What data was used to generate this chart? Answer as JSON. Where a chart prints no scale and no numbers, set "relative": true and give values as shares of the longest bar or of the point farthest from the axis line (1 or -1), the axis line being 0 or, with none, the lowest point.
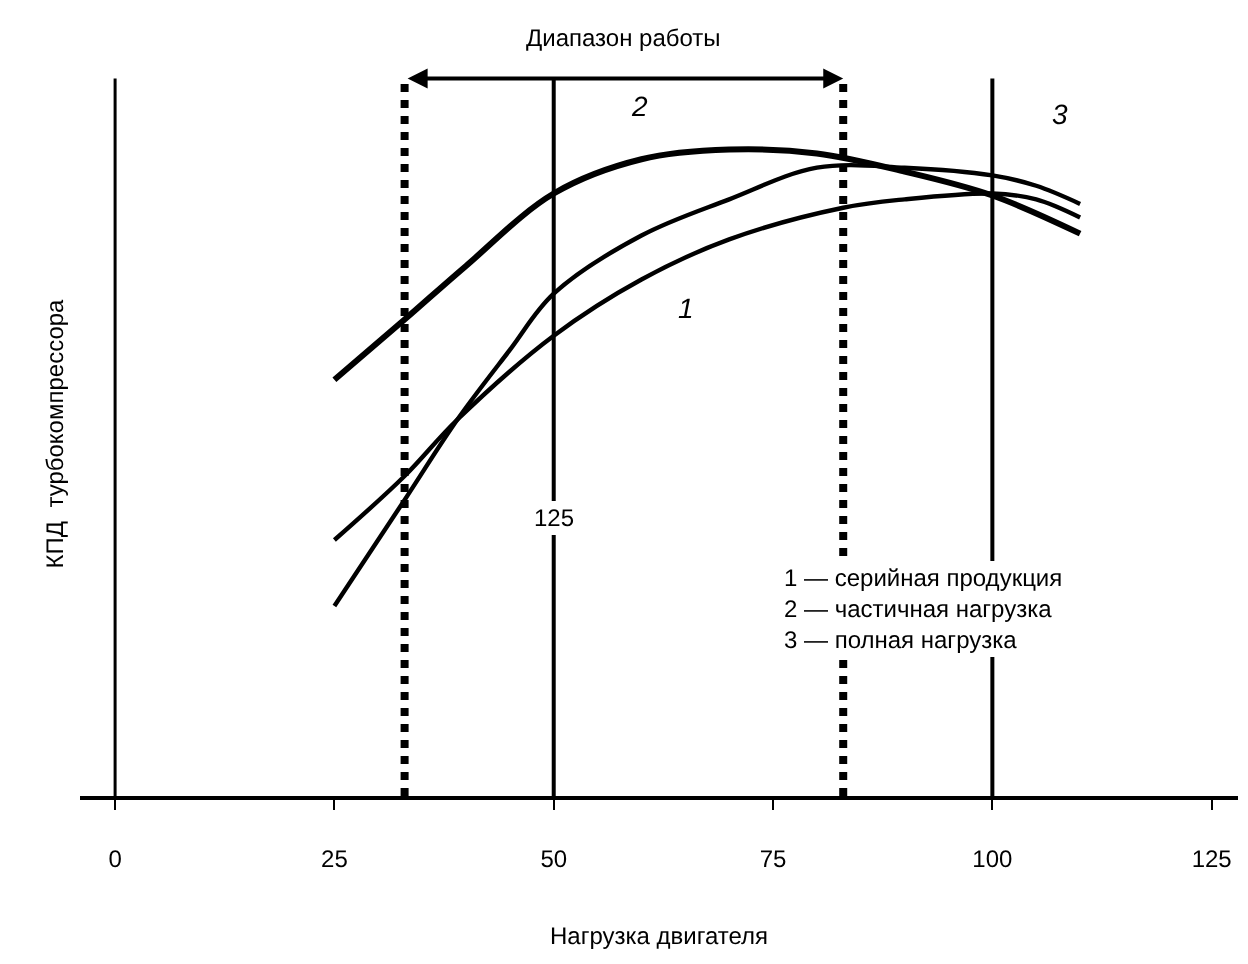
{
  "chart_data": {
    "type": "line",
    "relative": true,
    "xlabel": "Нагрузка двигателя",
    "ylabel": "КПД  турбокомпрессора",
    "xlim": [
      -4,
      128
    ],
    "xticks": [
      0,
      25,
      50,
      75,
      100,
      125
    ],
    "legend": false,
    "marker": "none",
    "line_style": "solid",
    "series": [
      {
        "name": "1",
        "color": "#000000",
        "x": [
          25,
          33,
          39,
          50,
          60,
          70,
          83,
          90,
          100,
          105,
          110
        ],
        "values": [
          0.396,
          0.495,
          0.582,
          0.712,
          0.799,
          0.861,
          0.91,
          0.923,
          0.932,
          0.923,
          0.895
        ]
      },
      {
        "name": "2",
        "color": "#000000",
        "x": [
          25,
          33,
          40,
          50,
          60,
          70,
          80,
          90,
          100,
          110
        ],
        "values": [
          0.644,
          0.737,
          0.82,
          0.932,
          0.985,
          1.0,
          0.994,
          0.966,
          0.929,
          0.87
        ]
      },
      {
        "name": "3",
        "color": "#000000",
        "x": [
          25,
          33,
          39,
          45,
          50,
          60,
          70,
          80,
          90,
          100,
          105,
          110
        ],
        "values": [
          0.294,
          0.458,
          0.582,
          0.69,
          0.777,
          0.867,
          0.923,
          0.972,
          0.972,
          0.96,
          0.944,
          0.916
        ]
      }
    ],
    "ref_lines": [
      {
        "axis": "x",
        "value": 50,
        "label": null,
        "line_style": "solid"
      },
      {
        "axis": "x",
        "value": 100,
        "label": null,
        "line_style": "solid"
      },
      {
        "axis": "x",
        "value": 33,
        "label": null,
        "line_style": "dotted"
      },
      {
        "axis": "x",
        "value": 83,
        "label": null,
        "line_style": "dotted"
      }
    ],
    "annotations": [
      "Диапазон работы",
      "125",
      "1 — серийная продукция\n2 — частичная нагрузка\n3 — полная нагрузка"
    ]
  }
}
